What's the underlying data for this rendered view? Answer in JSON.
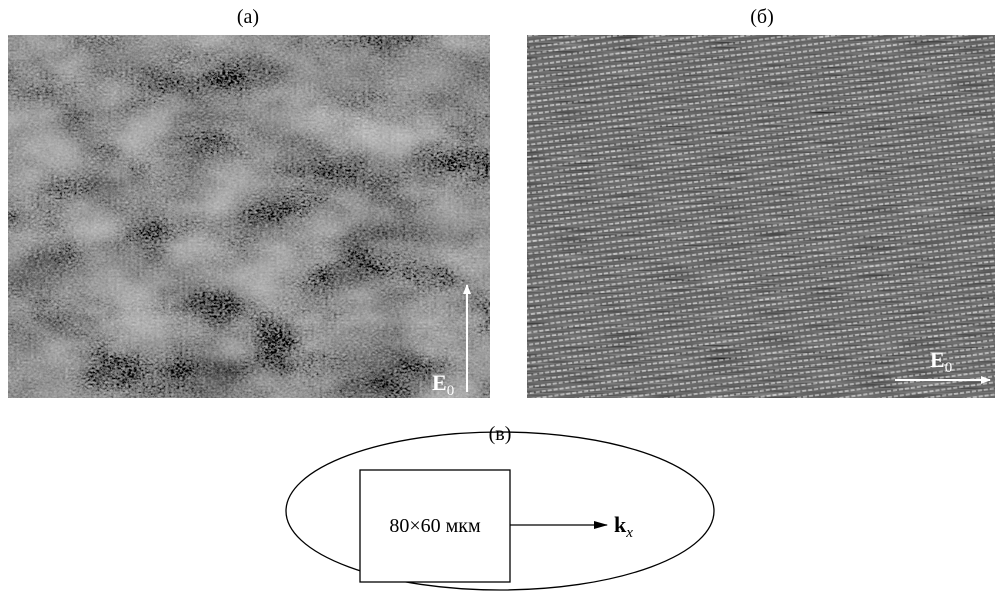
{
  "panels": [
    {
      "label": "(а)",
      "field": {
        "symbol": "E",
        "subscript": "0"
      }
    },
    {
      "label": "(б)",
      "field": {
        "symbol": "E",
        "subscript": "0"
      }
    }
  ],
  "diagram": {
    "label": "(в)",
    "area": "80×60 мкм",
    "wavevector": {
      "symbol": "k",
      "subscript": "x"
    }
  }
}
